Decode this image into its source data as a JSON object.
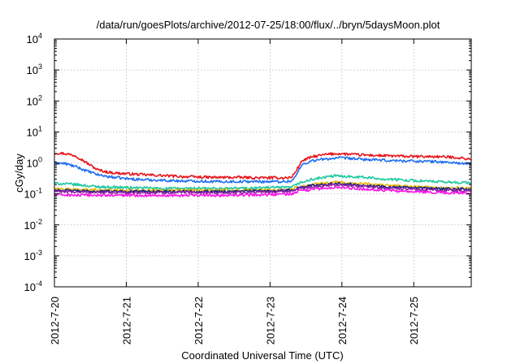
{
  "chart_data": {
    "type": "line",
    "title": "/data/run/goesPlots/archive/2012-07-25/18:00/flux/../bryn/5daysMoon.plot",
    "xlabel": "Coordinated Universal Time (UTC)",
    "ylabel": "cGy/day",
    "yscale": "log",
    "ylim": [
      0.0001,
      10000
    ],
    "xlim": [
      0,
      5.8
    ],
    "grid": true,
    "y_ticks": [
      {
        "value": 0.0001,
        "base": "10",
        "exp": "-4"
      },
      {
        "value": 0.001,
        "base": "10",
        "exp": "-3"
      },
      {
        "value": 0.01,
        "base": "10",
        "exp": "-2"
      },
      {
        "value": 0.1,
        "base": "10",
        "exp": "-1"
      },
      {
        "value": 1,
        "base": "10",
        "exp": "0"
      },
      {
        "value": 10,
        "base": "10",
        "exp": "1"
      },
      {
        "value": 100,
        "base": "10",
        "exp": "2"
      },
      {
        "value": 1000,
        "base": "10",
        "exp": "3"
      },
      {
        "value": 10000,
        "base": "10",
        "exp": "4"
      }
    ],
    "x_ticks": [
      {
        "value": 0,
        "label": "2012-7-20"
      },
      {
        "value": 1,
        "label": "2012-7-21"
      },
      {
        "value": 2,
        "label": "2012-7-22"
      },
      {
        "value": 3,
        "label": "2012-7-23"
      },
      {
        "value": 4,
        "label": "2012-7-24"
      },
      {
        "value": 5,
        "label": "2012-7-25"
      }
    ],
    "series": [
      {
        "name": "red",
        "color": "#e8141c",
        "x": [
          0,
          0.15,
          0.3,
          0.45,
          0.6,
          0.75,
          0.9,
          1.0,
          1.2,
          1.4,
          1.6,
          1.8,
          2.0,
          2.2,
          2.4,
          2.6,
          2.8,
          3.0,
          3.2,
          3.3,
          3.35,
          3.45,
          3.6,
          3.8,
          3.95,
          4.1,
          4.3,
          4.6,
          5.0,
          5.3,
          5.6,
          5.8
        ],
        "y": [
          2.1,
          2.0,
          1.7,
          1.0,
          0.6,
          0.5,
          0.46,
          0.45,
          0.42,
          0.4,
          0.38,
          0.36,
          0.35,
          0.34,
          0.34,
          0.34,
          0.33,
          0.33,
          0.33,
          0.34,
          0.5,
          1.2,
          1.6,
          1.9,
          2.0,
          1.9,
          1.8,
          1.7,
          1.6,
          1.6,
          1.5,
          1.3
        ]
      },
      {
        "name": "blue",
        "color": "#1e6ef0",
        "x": [
          0,
          0.15,
          0.3,
          0.45,
          0.6,
          0.75,
          0.9,
          1.0,
          1.2,
          1.4,
          1.6,
          1.8,
          2.0,
          2.2,
          2.4,
          2.6,
          2.8,
          3.0,
          3.2,
          3.3,
          3.35,
          3.45,
          3.6,
          3.8,
          3.95,
          4.1,
          4.3,
          4.6,
          5.0,
          5.3,
          5.6,
          5.8
        ],
        "y": [
          1.0,
          0.95,
          0.75,
          0.55,
          0.42,
          0.36,
          0.33,
          0.31,
          0.29,
          0.28,
          0.27,
          0.26,
          0.26,
          0.25,
          0.25,
          0.25,
          0.25,
          0.25,
          0.25,
          0.26,
          0.35,
          0.9,
          1.2,
          1.35,
          1.45,
          1.4,
          1.3,
          1.2,
          1.15,
          1.1,
          1.0,
          0.9
        ]
      },
      {
        "name": "teal",
        "color": "#1ec8a0",
        "x": [
          0,
          0.3,
          0.6,
          1.0,
          1.5,
          2.0,
          2.5,
          3.0,
          3.3,
          3.4,
          3.6,
          3.9,
          4.2,
          4.6,
          5.0,
          5.4,
          5.8
        ],
        "y": [
          0.22,
          0.2,
          0.17,
          0.16,
          0.15,
          0.15,
          0.15,
          0.16,
          0.16,
          0.22,
          0.3,
          0.38,
          0.36,
          0.3,
          0.27,
          0.24,
          0.23
        ]
      },
      {
        "name": "gold",
        "color": "#e8b800",
        "x": [
          0,
          0.3,
          0.6,
          1.0,
          1.5,
          2.0,
          2.5,
          3.0,
          3.3,
          3.4,
          3.6,
          3.9,
          4.2,
          4.6,
          5.0,
          5.4,
          5.8
        ],
        "y": [
          0.145,
          0.14,
          0.135,
          0.13,
          0.13,
          0.13,
          0.13,
          0.135,
          0.14,
          0.17,
          0.2,
          0.24,
          0.22,
          0.19,
          0.17,
          0.155,
          0.15
        ]
      },
      {
        "name": "navy",
        "color": "#1a237e",
        "x": [
          0,
          0.3,
          0.6,
          1.0,
          1.5,
          2.0,
          2.5,
          3.0,
          3.3,
          3.4,
          3.6,
          3.9,
          4.2,
          4.6,
          5.0,
          5.4,
          5.8
        ],
        "y": [
          0.13,
          0.125,
          0.12,
          0.12,
          0.12,
          0.12,
          0.12,
          0.125,
          0.13,
          0.16,
          0.19,
          0.22,
          0.2,
          0.17,
          0.155,
          0.145,
          0.14
        ]
      },
      {
        "name": "purple",
        "color": "#8e24aa",
        "x": [
          0,
          0.3,
          0.6,
          1.0,
          1.5,
          2.0,
          2.5,
          3.0,
          3.3,
          3.4,
          3.6,
          3.9,
          4.2,
          4.6,
          5.0,
          5.4,
          5.8
        ],
        "y": [
          0.12,
          0.115,
          0.112,
          0.11,
          0.11,
          0.11,
          0.11,
          0.115,
          0.12,
          0.15,
          0.17,
          0.2,
          0.18,
          0.155,
          0.14,
          0.13,
          0.125
        ]
      },
      {
        "name": "magenta",
        "color": "#ff10e8",
        "x": [
          0,
          0.3,
          0.6,
          1.0,
          1.5,
          2.0,
          2.5,
          3.0,
          3.3,
          3.4,
          3.6,
          3.9,
          4.2,
          4.6,
          5.0,
          5.4,
          5.8
        ],
        "y": [
          0.095,
          0.09,
          0.09,
          0.09,
          0.09,
          0.09,
          0.09,
          0.095,
          0.1,
          0.12,
          0.14,
          0.16,
          0.15,
          0.13,
          0.115,
          0.11,
          0.105
        ]
      }
    ]
  }
}
